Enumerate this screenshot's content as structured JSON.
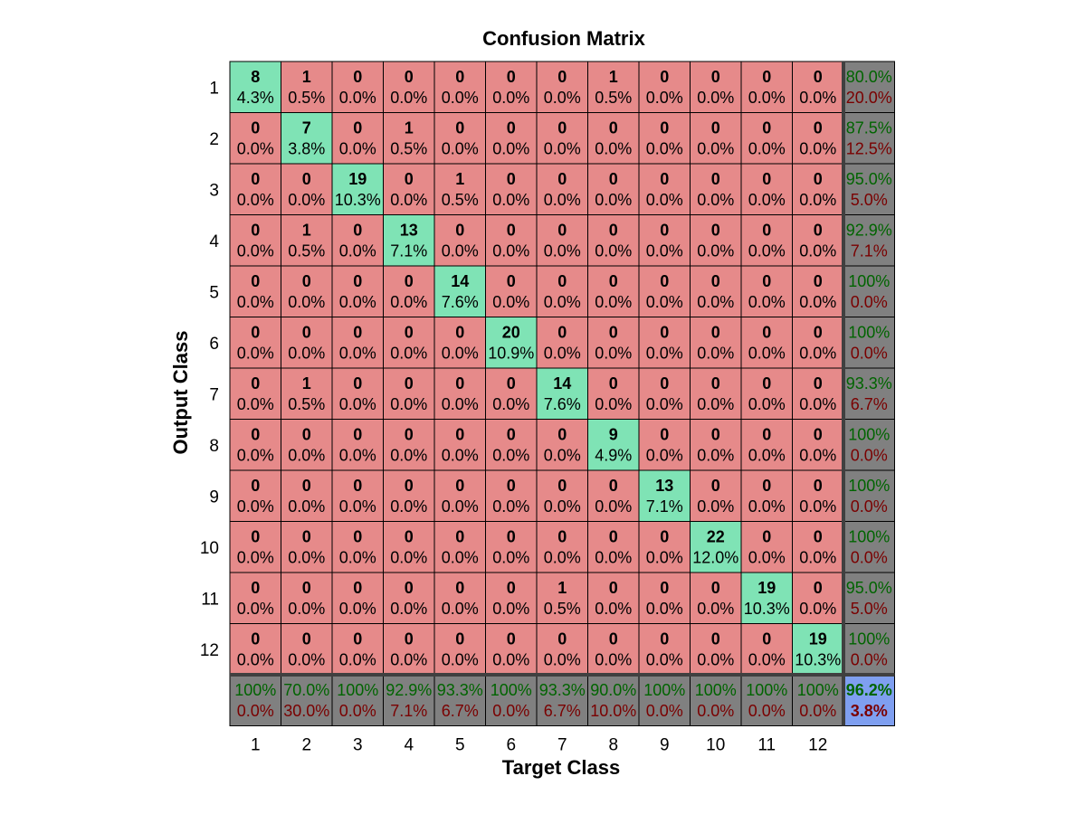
{
  "chart_data": {
    "type": "heatmap",
    "subtype": "confusion-matrix",
    "title": "Confusion Matrix",
    "xlabel": "Target Class",
    "ylabel": "Output Class",
    "classes": [
      "1",
      "2",
      "3",
      "4",
      "5",
      "6",
      "7",
      "8",
      "9",
      "10",
      "11",
      "12"
    ],
    "matrix": [
      [
        8,
        1,
        0,
        0,
        0,
        0,
        0,
        1,
        0,
        0,
        0,
        0
      ],
      [
        0,
        7,
        0,
        1,
        0,
        0,
        0,
        0,
        0,
        0,
        0,
        0
      ],
      [
        0,
        0,
        19,
        0,
        1,
        0,
        0,
        0,
        0,
        0,
        0,
        0
      ],
      [
        0,
        1,
        0,
        13,
        0,
        0,
        0,
        0,
        0,
        0,
        0,
        0
      ],
      [
        0,
        0,
        0,
        0,
        14,
        0,
        0,
        0,
        0,
        0,
        0,
        0
      ],
      [
        0,
        0,
        0,
        0,
        0,
        20,
        0,
        0,
        0,
        0,
        0,
        0
      ],
      [
        0,
        1,
        0,
        0,
        0,
        0,
        14,
        0,
        0,
        0,
        0,
        0
      ],
      [
        0,
        0,
        0,
        0,
        0,
        0,
        0,
        9,
        0,
        0,
        0,
        0
      ],
      [
        0,
        0,
        0,
        0,
        0,
        0,
        0,
        0,
        13,
        0,
        0,
        0
      ],
      [
        0,
        0,
        0,
        0,
        0,
        0,
        0,
        0,
        0,
        22,
        0,
        0
      ],
      [
        0,
        0,
        0,
        0,
        0,
        0,
        1,
        0,
        0,
        0,
        19,
        0
      ],
      [
        0,
        0,
        0,
        0,
        0,
        0,
        0,
        0,
        0,
        0,
        0,
        19
      ]
    ],
    "percents": [
      [
        "4.3%",
        "0.5%",
        "0.0%",
        "0.0%",
        "0.0%",
        "0.0%",
        "0.0%",
        "0.5%",
        "0.0%",
        "0.0%",
        "0.0%",
        "0.0%"
      ],
      [
        "0.0%",
        "3.8%",
        "0.0%",
        "0.5%",
        "0.0%",
        "0.0%",
        "0.0%",
        "0.0%",
        "0.0%",
        "0.0%",
        "0.0%",
        "0.0%"
      ],
      [
        "0.0%",
        "0.0%",
        "10.3%",
        "0.0%",
        "0.5%",
        "0.0%",
        "0.0%",
        "0.0%",
        "0.0%",
        "0.0%",
        "0.0%",
        "0.0%"
      ],
      [
        "0.0%",
        "0.5%",
        "0.0%",
        "7.1%",
        "0.0%",
        "0.0%",
        "0.0%",
        "0.0%",
        "0.0%",
        "0.0%",
        "0.0%",
        "0.0%"
      ],
      [
        "0.0%",
        "0.0%",
        "0.0%",
        "0.0%",
        "7.6%",
        "0.0%",
        "0.0%",
        "0.0%",
        "0.0%",
        "0.0%",
        "0.0%",
        "0.0%"
      ],
      [
        "0.0%",
        "0.0%",
        "0.0%",
        "0.0%",
        "0.0%",
        "10.9%",
        "0.0%",
        "0.0%",
        "0.0%",
        "0.0%",
        "0.0%",
        "0.0%"
      ],
      [
        "0.0%",
        "0.5%",
        "0.0%",
        "0.0%",
        "0.0%",
        "0.0%",
        "7.6%",
        "0.0%",
        "0.0%",
        "0.0%",
        "0.0%",
        "0.0%"
      ],
      [
        "0.0%",
        "0.0%",
        "0.0%",
        "0.0%",
        "0.0%",
        "0.0%",
        "0.0%",
        "4.9%",
        "0.0%",
        "0.0%",
        "0.0%",
        "0.0%"
      ],
      [
        "0.0%",
        "0.0%",
        "0.0%",
        "0.0%",
        "0.0%",
        "0.0%",
        "0.0%",
        "0.0%",
        "7.1%",
        "0.0%",
        "0.0%",
        "0.0%"
      ],
      [
        "0.0%",
        "0.0%",
        "0.0%",
        "0.0%",
        "0.0%",
        "0.0%",
        "0.0%",
        "0.0%",
        "0.0%",
        "12.0%",
        "0.0%",
        "0.0%"
      ],
      [
        "0.0%",
        "0.0%",
        "0.0%",
        "0.0%",
        "0.0%",
        "0.0%",
        "0.5%",
        "0.0%",
        "0.0%",
        "0.0%",
        "10.3%",
        "0.0%"
      ],
      [
        "0.0%",
        "0.0%",
        "0.0%",
        "0.0%",
        "0.0%",
        "0.0%",
        "0.0%",
        "0.0%",
        "0.0%",
        "0.0%",
        "0.0%",
        "10.3%"
      ]
    ],
    "row_summary": [
      {
        "correct": "80.0%",
        "error": "20.0%"
      },
      {
        "correct": "87.5%",
        "error": "12.5%"
      },
      {
        "correct": "95.0%",
        "error": "5.0%"
      },
      {
        "correct": "92.9%",
        "error": "7.1%"
      },
      {
        "correct": "100%",
        "error": "0.0%"
      },
      {
        "correct": "100%",
        "error": "0.0%"
      },
      {
        "correct": "93.3%",
        "error": "6.7%"
      },
      {
        "correct": "100%",
        "error": "0.0%"
      },
      {
        "correct": "100%",
        "error": "0.0%"
      },
      {
        "correct": "100%",
        "error": "0.0%"
      },
      {
        "correct": "95.0%",
        "error": "5.0%"
      },
      {
        "correct": "100%",
        "error": "0.0%"
      }
    ],
    "col_summary": [
      {
        "correct": "100%",
        "error": "0.0%"
      },
      {
        "correct": "70.0%",
        "error": "30.0%"
      },
      {
        "correct": "100%",
        "error": "0.0%"
      },
      {
        "correct": "92.9%",
        "error": "7.1%"
      },
      {
        "correct": "93.3%",
        "error": "6.7%"
      },
      {
        "correct": "100%",
        "error": "0.0%"
      },
      {
        "correct": "93.3%",
        "error": "6.7%"
      },
      {
        "correct": "90.0%",
        "error": "10.0%"
      },
      {
        "correct": "100%",
        "error": "0.0%"
      },
      {
        "correct": "100%",
        "error": "0.0%"
      },
      {
        "correct": "100%",
        "error": "0.0%"
      },
      {
        "correct": "100%",
        "error": "0.0%"
      }
    ],
    "overall": {
      "correct": "96.2%",
      "error": "3.8%"
    },
    "colors": {
      "diagonal": "#7fe3b5",
      "off_diagonal": "#e68a8a",
      "summary": "#808080",
      "overall": "#7f9ff0",
      "correct_text": "#006400",
      "error_text": "#7a0000",
      "grid_line": "#000000",
      "cell_text": "#000000"
    }
  }
}
